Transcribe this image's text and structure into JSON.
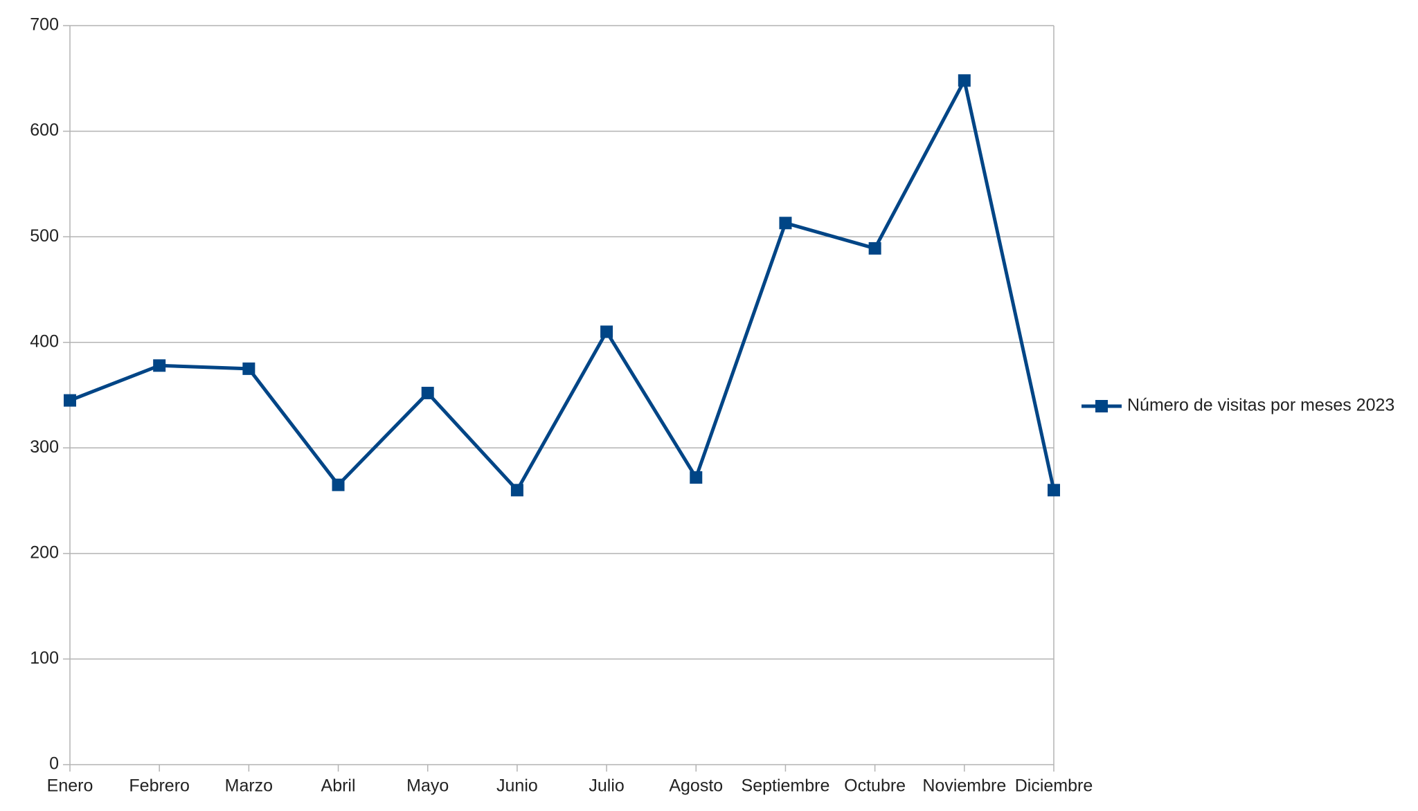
{
  "chart_data": {
    "type": "line",
    "categories": [
      "Enero",
      "Febrero",
      "Marzo",
      "Abril",
      "Mayo",
      "Junio",
      "Julio",
      "Agosto",
      "Septiembre",
      "Octubre",
      "Noviembre",
      "Diciembre"
    ],
    "series": [
      {
        "name": "Número de visitas por meses 2023",
        "color": "#004586",
        "values": [
          345,
          378,
          375,
          265,
          352,
          260,
          410,
          272,
          513,
          489,
          648,
          260
        ]
      }
    ],
    "ylim": [
      0,
      700
    ],
    "yticks": [
      0,
      100,
      200,
      300,
      400,
      500,
      600,
      700
    ],
    "grid": true,
    "legend": "right"
  }
}
